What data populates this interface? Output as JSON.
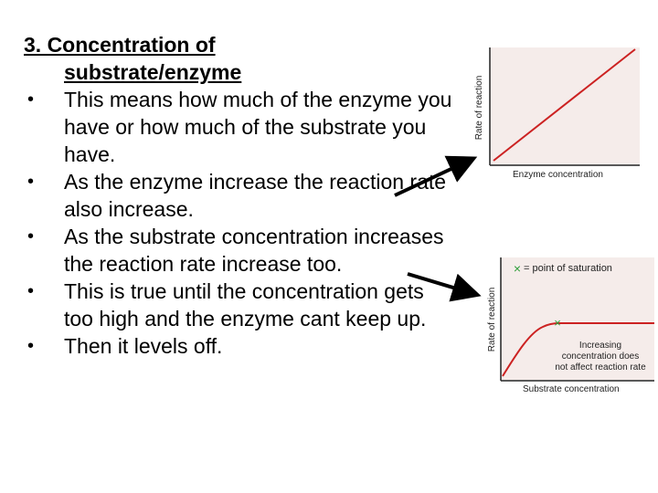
{
  "title": {
    "line1": "3. Concentration of",
    "line2": "substrate/enzyme"
  },
  "bullets": [
    "This means how much of the enzyme you have or how much of the substrate you have.",
    "As the enzyme increase the reaction rate also increase.",
    "As the substrate concentration increases the reaction rate increase too.",
    "This is true until the concentration gets too high and the enzyme cant keep up.",
    "Then it levels off."
  ],
  "bullet_char": "•",
  "graph1": {
    "ylabel": "Rate of reaction",
    "xlabel": "Enzyme concentration",
    "line_color": "#cc2222",
    "bg_color": "#f5ecea"
  },
  "graph2": {
    "ylabel": "Rate of reaction",
    "xlabel": "Substrate concentration",
    "legend_marker": "×",
    "legend_text": "= point of saturation",
    "point_marker": "×",
    "annotation": [
      "Increasing",
      "concentration does",
      "not affect reaction rate"
    ],
    "line_color": "#cc2222",
    "marker_color": "#2f9e3a",
    "bg_color": "#f5ecea"
  }
}
